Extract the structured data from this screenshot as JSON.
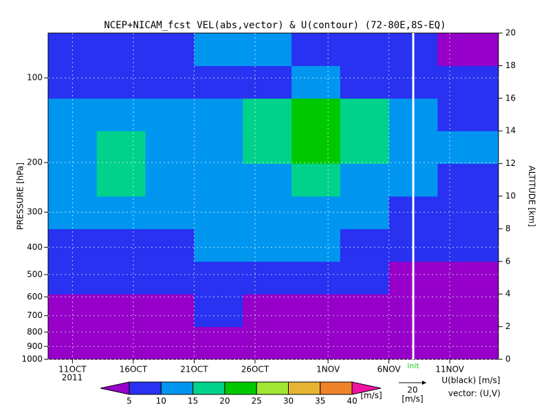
{
  "chart_data": {
    "type": "heatmap",
    "title": "NCEP+NICAM_fcst VEL(abs,vector) & U(contour)  (72-80E,8S-EQ)",
    "ylabel": "PRESSURE [hPa]",
    "y2label": "ALTITUDE [km]",
    "year_label": "2011",
    "xlim": [
      "2011-10-09",
      "2011-11-15"
    ],
    "xticks": [
      {
        "value": "2011-10-11",
        "label": "11OCT"
      },
      {
        "value": "2011-10-16",
        "label": "16OCT"
      },
      {
        "value": "2011-10-21",
        "label": "21OCT"
      },
      {
        "value": "2011-10-26",
        "label": "26OCT"
      },
      {
        "value": "2011-11-01",
        "label": "1NOV"
      },
      {
        "value": "2011-11-06",
        "label": "6NOV"
      },
      {
        "value": "2011-11-11",
        "label": "11NOV"
      }
    ],
    "ylim": [
      1000,
      69.3
    ],
    "ylog": true,
    "yticks": [
      100,
      200,
      300,
      400,
      500,
      600,
      700,
      800,
      900,
      1000
    ],
    "y2lim": [
      0,
      20
    ],
    "y2ticks": [
      0,
      2,
      4,
      6,
      8,
      10,
      12,
      14,
      16,
      18,
      20
    ],
    "init": {
      "label": "init",
      "x": "2011-11-08"
    },
    "field": {
      "x_edges": [
        "2011-10-09",
        "2011-10-13",
        "2011-10-17",
        "2011-10-21",
        "2011-10-25",
        "2011-10-29",
        "2011-11-02",
        "2011-11-06",
        "2011-11-10",
        "2011-11-15"
      ],
      "y_edges": [
        0,
        2,
        4,
        6,
        8,
        10,
        12,
        14,
        16,
        18,
        20
      ],
      "values": [
        [
          3,
          3,
          3,
          3,
          3,
          3,
          3,
          3,
          3
        ],
        [
          4,
          4,
          4,
          6,
          4,
          3,
          4,
          3,
          3
        ],
        [
          6,
          7,
          7,
          8,
          8,
          6,
          7,
          4,
          4
        ],
        [
          9,
          9,
          9,
          10,
          11,
          10,
          9,
          8,
          6
        ],
        [
          10,
          12,
          12,
          11,
          12,
          12,
          10,
          9,
          7
        ],
        [
          12,
          16,
          12,
          13,
          14,
          16,
          14,
          12,
          9
        ],
        [
          14,
          17,
          13,
          14,
          18,
          22,
          16,
          13,
          12
        ],
        [
          11,
          12,
          10,
          12,
          18,
          22,
          15,
          10,
          8
        ],
        [
          9,
          8,
          6,
          7,
          9,
          10,
          8,
          7,
          6
        ],
        [
          6,
          8,
          8,
          10,
          12,
          8,
          6,
          5,
          4
        ]
      ]
    },
    "colorbar": {
      "levels": [
        5,
        10,
        15,
        20,
        25,
        30,
        35,
        40
      ],
      "colors": [
        "#9600c8",
        "#2832f0",
        "#0096f0",
        "#00d28c",
        "#00c800",
        "#a0e632",
        "#e6b432",
        "#f08228",
        "#f014a0"
      ],
      "unit": "[m/s]"
    },
    "vector_legend": {
      "speed": 20,
      "unit": "[m/s]",
      "contour_label": "U(black) [m/s]",
      "vector_label": "vector: (U,V)"
    }
  }
}
